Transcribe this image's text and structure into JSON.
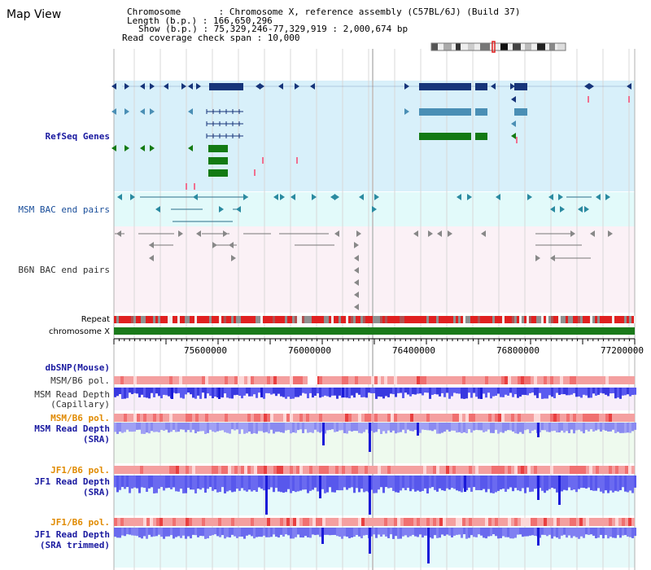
{
  "app_title": "Map View",
  "info": {
    "chromosome": "Chromosome       : Chromosome X, reference assembly (C57BL/6J) (Build 37)",
    "length": "Length (b.p.) : 166,650,296",
    "show": "Show (b.p.) : 75,329,246-77,329,919 : 2,000,674 bp",
    "span": "Read coverage check span : 10,000"
  },
  "tracks": {
    "refseq": "RefSeq Genes",
    "msm_bac": "MSM BAC end pairs",
    "b6n_bac": "B6N BAC end pairs",
    "repeat": "Repeat",
    "chromosome": "chromosome X",
    "dbsnp": "dbSNP(Mouse)",
    "msm_pol1": "MSM/B6 pol.",
    "msm_depth_cap_1": "MSM Read Depth",
    "msm_depth_cap_2": "(Capillary)",
    "msm_pol2": "MSM/B6 pol.",
    "msm_depth_sra_1": "MSM Read Depth",
    "msm_depth_sra_2": "(SRA)",
    "jf1_pol1": "JF1/B6 pol.",
    "jf1_depth_sra_1": "JF1 Read Depth",
    "jf1_depth_sra_2": "(SRA)",
    "jf1_pol2": "JF1/B6 pol.",
    "jf1_depth_trim_1": "JF1 Read Depth",
    "jf1_depth_trim_2": "(SRA trimmed)"
  },
  "ruler": {
    "ticks": [
      "75600000",
      "76000000",
      "76400000",
      "76800000",
      "77200000"
    ]
  },
  "colors": {
    "refseq_bg": "#d8f0fa",
    "bac_bg": "#e2fafa",
    "b6n_bg": "#fbf1f6",
    "gene_navy": "#17357a",
    "gene_steel": "#4a8fb5",
    "gene_green": "#137a13",
    "depth_blue": "#4f4ff0",
    "pol_red": "#f07070"
  }
}
